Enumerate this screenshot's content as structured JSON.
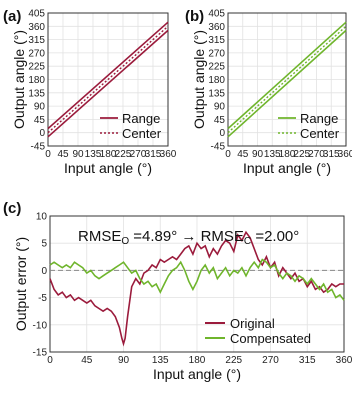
{
  "colors": {
    "original": "#9b1b3c",
    "compensated": "#6fb52c",
    "grid": "#e2e2e2",
    "axis": "#333333"
  },
  "chart_data": [
    {
      "panel_label": "(a)",
      "type": "line",
      "xlabel": "Input angle (°)",
      "ylabel": "Output angle (°)",
      "xlim": [
        0,
        360
      ],
      "ylim": [
        -45,
        405
      ],
      "xticks": [
        0,
        45,
        90,
        135,
        180,
        225,
        270,
        315,
        360
      ],
      "yticks": [
        -45,
        0,
        45,
        90,
        135,
        180,
        225,
        270,
        315,
        360,
        405
      ],
      "grid": true,
      "legend_position": "bottom-right",
      "legend": [
        "Range",
        "Center"
      ],
      "color_key": "original",
      "range_band": {
        "lower_offset": -14,
        "upper_offset": 14
      },
      "center_offset": 0,
      "series": [
        {
          "name": "Range",
          "style": "solid",
          "x": [
            0,
            360
          ],
          "y_lower": [
            -14,
            346
          ],
          "y_upper": [
            14,
            374
          ]
        },
        {
          "name": "Center",
          "style": "dotted",
          "x": [
            0,
            360
          ],
          "y": [
            0,
            360
          ]
        }
      ]
    },
    {
      "panel_label": "(b)",
      "type": "line",
      "xlabel": "Input angle (°)",
      "ylabel": "Output angle (°)",
      "xlim": [
        0,
        360
      ],
      "ylim": [
        -45,
        405
      ],
      "xticks": [
        0,
        45,
        90,
        135,
        180,
        225,
        270,
        315,
        360
      ],
      "yticks": [
        -45,
        0,
        45,
        90,
        135,
        180,
        225,
        270,
        315,
        360,
        405
      ],
      "grid": true,
      "legend_position": "bottom-right",
      "legend": [
        "Range",
        "Center"
      ],
      "color_key": "compensated",
      "range_band": {
        "lower_offset": -14,
        "upper_offset": 14
      },
      "center_offset": 0,
      "series": [
        {
          "name": "Range",
          "style": "solid",
          "x": [
            0,
            360
          ],
          "y_lower": [
            -14,
            346
          ],
          "y_upper": [
            14,
            374
          ]
        },
        {
          "name": "Center",
          "style": "dotted",
          "x": [
            0,
            360
          ],
          "y": [
            0,
            360
          ]
        }
      ]
    },
    {
      "panel_label": "(c)",
      "type": "line",
      "xlabel": "Input angle (°)",
      "ylabel": "Output error (°)",
      "xlim": [
        0,
        360
      ],
      "ylim": [
        -15,
        10
      ],
      "xticks": [
        0,
        45,
        90,
        135,
        180,
        225,
        270,
        315,
        360
      ],
      "yticks": [
        -15,
        -10,
        -5,
        0,
        5,
        10
      ],
      "grid": true,
      "legend_position": "bottom-right",
      "annotation": {
        "prefix": "RMSE",
        "sub1": "O",
        "value1": " =4.89° → RMSE",
        "sub2": "C",
        "value2": " =2.00°"
      },
      "series": [
        {
          "name": "Original",
          "color_key": "original",
          "x": [
            0,
            5,
            10,
            15,
            20,
            25,
            30,
            35,
            40,
            45,
            50,
            55,
            60,
            65,
            70,
            75,
            80,
            85,
            88,
            90,
            92,
            95,
            100,
            105,
            110,
            115,
            120,
            125,
            130,
            135,
            140,
            145,
            150,
            155,
            160,
            165,
            170,
            175,
            180,
            185,
            190,
            195,
            200,
            205,
            210,
            215,
            220,
            225,
            230,
            235,
            240,
            245,
            250,
            255,
            260,
            265,
            270,
            275,
            280,
            285,
            290,
            295,
            300,
            305,
            310,
            315,
            320,
            325,
            330,
            335,
            340,
            345,
            350,
            355,
            360
          ],
          "y": [
            -1.5,
            -3.5,
            -4.5,
            -4,
            -5,
            -4.5,
            -5.5,
            -5,
            -5.5,
            -6,
            -5.5,
            -6.5,
            -7,
            -7.5,
            -7,
            -7.5,
            -8.5,
            -10.5,
            -12.5,
            -13.5,
            -12.5,
            -8.5,
            -3,
            -1.5,
            -2.5,
            -0.5,
            0,
            1,
            0.5,
            2,
            1.5,
            2,
            2.5,
            2,
            3,
            4,
            4.5,
            3,
            5,
            4,
            4.5,
            2.5,
            4,
            3,
            4.5,
            5.5,
            5,
            3.5,
            6.5,
            5.5,
            7,
            6,
            4,
            2,
            1,
            2.5,
            0.5,
            1.5,
            -1,
            0.5,
            -0.5,
            -1.5,
            -0.5,
            -2,
            -1.5,
            -3,
            -2,
            -3.5,
            -3,
            -4,
            -3.5,
            -2.5,
            -3,
            -2.5,
            -2.5
          ]
        },
        {
          "name": "Compensated",
          "color_key": "compensated",
          "x": [
            0,
            5,
            10,
            15,
            20,
            25,
            30,
            35,
            40,
            45,
            50,
            55,
            60,
            65,
            70,
            75,
            80,
            85,
            90,
            95,
            100,
            105,
            110,
            115,
            120,
            125,
            130,
            135,
            140,
            145,
            150,
            155,
            160,
            165,
            170,
            175,
            180,
            185,
            190,
            195,
            200,
            205,
            210,
            215,
            220,
            225,
            230,
            235,
            240,
            245,
            250,
            255,
            260,
            265,
            270,
            275,
            280,
            285,
            290,
            295,
            300,
            305,
            310,
            315,
            320,
            325,
            330,
            335,
            340,
            345,
            350,
            355,
            360
          ],
          "y": [
            1,
            1.5,
            1,
            0.5,
            1,
            0.5,
            1.5,
            1,
            0.5,
            -0.5,
            0,
            -1,
            -1.5,
            -1,
            -0.5,
            0,
            0.5,
            1,
            1.5,
            0.5,
            -0.5,
            0,
            -1.5,
            -2.5,
            -2,
            -3,
            -2.5,
            -4,
            -2.5,
            -1,
            0,
            0.5,
            1.5,
            0,
            -2,
            -3.5,
            -2,
            0,
            1,
            -0.5,
            0.5,
            -1.5,
            -0.5,
            0.5,
            -1,
            0,
            -0.5,
            0.5,
            -1,
            0.5,
            1.5,
            0.5,
            2,
            1.5,
            0.5,
            1,
            -0.5,
            -1.5,
            -0.5,
            -1,
            -2,
            -1,
            -1.5,
            -2.5,
            -1.5,
            -2.5,
            -3.5,
            -2.5,
            -4,
            -3.5,
            -5,
            -4.5,
            -5.5
          ]
        }
      ]
    }
  ]
}
